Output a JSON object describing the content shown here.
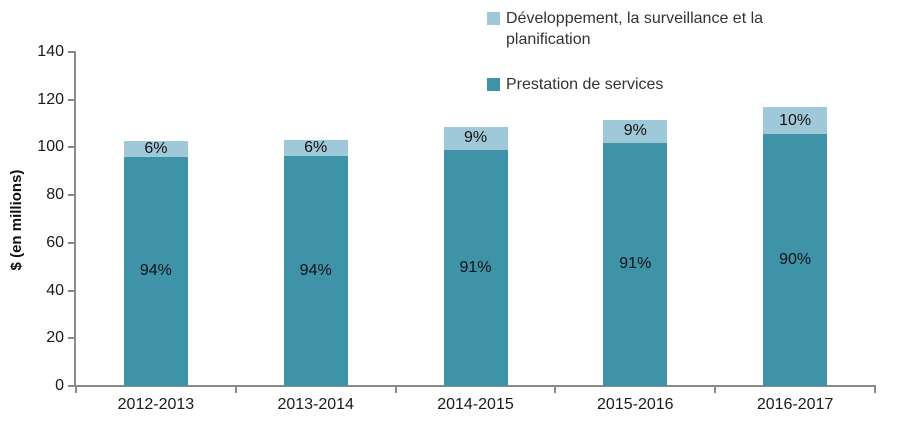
{
  "chart_data": {
    "type": "bar",
    "stacked": true,
    "title": "",
    "xlabel": "",
    "ylabel": "$ (en millions)",
    "ylim": [
      0,
      140
    ],
    "yticks": [
      0,
      20,
      40,
      60,
      80,
      100,
      120,
      140
    ],
    "grid": false,
    "legend_position": "top-center",
    "categories": [
      "2012-2013",
      "2013-2014",
      "2014-2015",
      "2015-2016",
      "2016-2017"
    ],
    "series": [
      {
        "name": "Prestation de services",
        "color": "#3E93A9",
        "values": [
          96,
          96.5,
          99,
          102,
          105.5
        ],
        "percent_labels": [
          "94%",
          "94%",
          "91%",
          "91%",
          "90%"
        ]
      },
      {
        "name": "Développement, la surveillance et la planification",
        "color": "#9FC9D9",
        "values": [
          6.5,
          6.5,
          9.5,
          9.5,
          11.5
        ],
        "percent_labels": [
          "6%",
          "6%",
          "9%",
          "9%",
          "10%"
        ]
      }
    ],
    "legend": [
      {
        "label": "Développement, la surveillance et la planification",
        "color": "#9FC9D9"
      },
      {
        "label": "Prestation de services",
        "color": "#3E93A9"
      }
    ]
  },
  "colors": {
    "axis": "#8a8a8a",
    "label_text": "#1a1a1a",
    "background": "#ffffff"
  }
}
